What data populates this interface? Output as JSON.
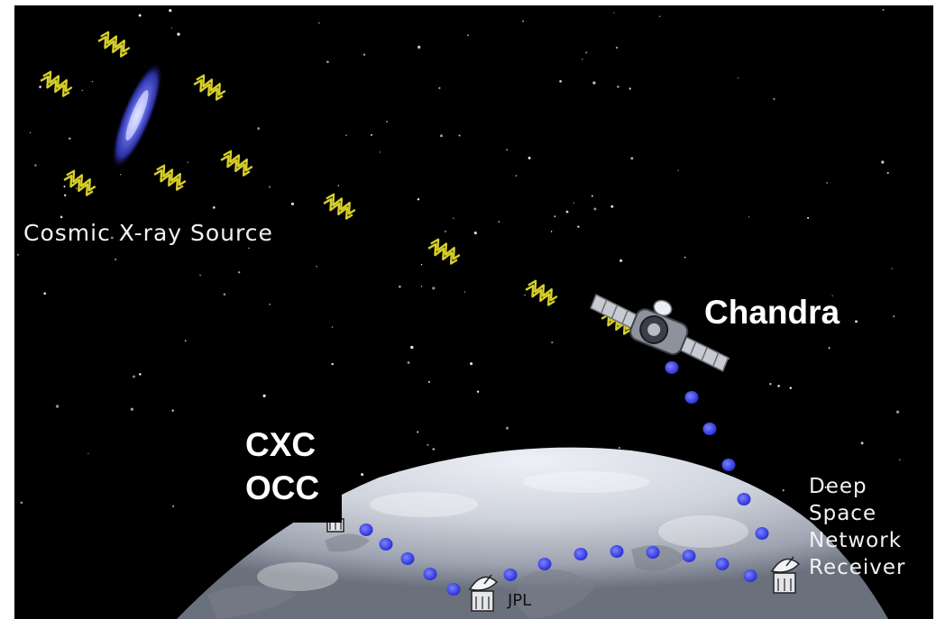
{
  "labels": {
    "source": "Cosmic X-ray Source",
    "satellite": "Chandra",
    "cxc": "CXC",
    "occ": "OCC",
    "jpl": "JPL",
    "dsn": [
      "Deep",
      "Space",
      "Network",
      "Receiver"
    ]
  },
  "icons": {
    "xray_wave": "zigzag-x-ray-glyph",
    "satellite": "chandra-spacecraft",
    "ground_station": "dish-antenna"
  },
  "colors": {
    "space": "#000000",
    "frame": "#ffffff",
    "xray_wave": "#d8cf2a",
    "downlink_dot": "#3a3ff0",
    "galaxy": "#4a57d8",
    "earth": "#d4d8e0"
  }
}
